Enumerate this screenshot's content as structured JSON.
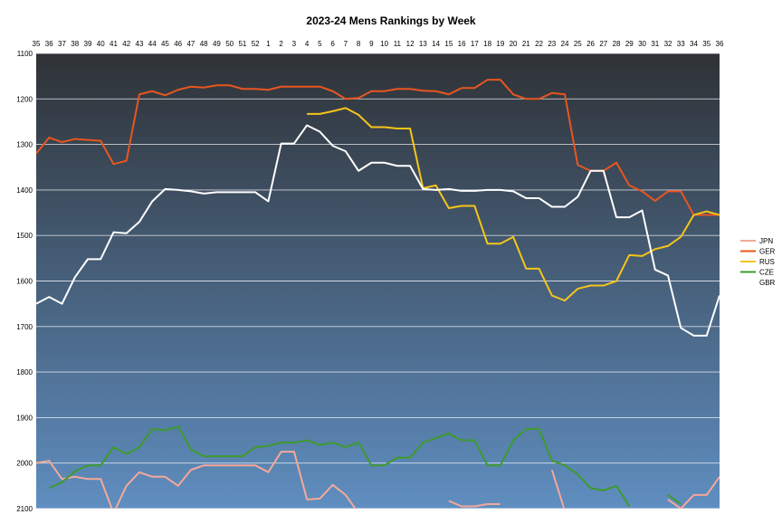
{
  "chart_data": {
    "type": "line",
    "title": "2023-24 Mens Rankings by Week",
    "xlabel": "",
    "ylabel": "",
    "y_reversed": true,
    "ylim": [
      1100,
      2100
    ],
    "yticks": [
      1100,
      1200,
      1300,
      1400,
      1500,
      1600,
      1700,
      1800,
      1900,
      2000,
      2100
    ],
    "x_position": "top",
    "grid": true,
    "legend_position": "right",
    "categories": [
      "35",
      "36",
      "37",
      "38",
      "39",
      "40",
      "41",
      "42",
      "43",
      "44",
      "45",
      "46",
      "47",
      "48",
      "49",
      "50",
      "51",
      "52",
      "1",
      "2",
      "3",
      "4",
      "5",
      "6",
      "7",
      "8",
      "9",
      "10",
      "11",
      "12",
      "13",
      "14",
      "15",
      "16",
      "17",
      "18",
      "19",
      "20",
      "21",
      "22",
      "23",
      "24",
      "25",
      "26",
      "27",
      "28",
      "29",
      "30",
      "31",
      "32",
      "33",
      "34",
      "35",
      "36"
    ],
    "series": [
      {
        "name": "JPN",
        "color": "#f4a89a",
        "values": [
          2000,
          1995,
          2035,
          2030,
          2035,
          2035,
          2110,
          2050,
          2020,
          2030,
          2030,
          2050,
          2015,
          2005,
          2005,
          2005,
          2005,
          2005,
          2020,
          1975,
          1975,
          2080,
          2078,
          2048,
          2070,
          2110,
          null,
          null,
          null,
          null,
          null,
          null,
          2083,
          2095,
          2095,
          2090,
          2090,
          null,
          null,
          null,
          2015,
          2105,
          null,
          null,
          null,
          null,
          null,
          null,
          null,
          2080,
          2100,
          2070,
          2070,
          2030
        ]
      },
      {
        "name": "GER",
        "color": "#e8561f",
        "values": [
          1320,
          1285,
          1295,
          1288,
          1290,
          1292,
          1343,
          1336,
          1190,
          1183,
          1192,
          1180,
          1173,
          1175,
          1170,
          1170,
          1178,
          1178,
          1180,
          1173,
          1173,
          1173,
          1173,
          1183,
          1200,
          1198,
          1183,
          1183,
          1178,
          1178,
          1182,
          1183,
          1190,
          1176,
          1176,
          1158,
          1158,
          1190,
          1200,
          1200,
          1187,
          1190,
          1345,
          1358,
          1358,
          1340,
          1390,
          1403,
          1424,
          1403,
          1403,
          1455,
          1455,
          1455
        ]
      },
      {
        "name": "RUS",
        "color": "#f5c518",
        "values": [
          null,
          null,
          null,
          null,
          null,
          null,
          null,
          null,
          null,
          null,
          null,
          null,
          null,
          null,
          null,
          null,
          null,
          null,
          null,
          null,
          null,
          1233,
          1233,
          1227,
          1220,
          1235,
          1262,
          1262,
          1265,
          1265,
          1396,
          1390,
          1440,
          1435,
          1435,
          1518,
          1518,
          1503,
          1573,
          1573,
          1632,
          1643,
          1617,
          1610,
          1610,
          1600,
          1543,
          1545,
          1530,
          1523,
          1503,
          1455,
          1447,
          1455
        ]
      },
      {
        "name": "CZE",
        "color": "#3e9b2d",
        "values": [
          null,
          2055,
          2042,
          2018,
          2005,
          2005,
          1965,
          1980,
          1965,
          1925,
          1928,
          1920,
          1970,
          1985,
          1985,
          1985,
          1985,
          1965,
          1962,
          1955,
          1955,
          1950,
          1960,
          1955,
          1965,
          1955,
          2005,
          2005,
          1988,
          1988,
          1955,
          1945,
          1935,
          1950,
          1950,
          2005,
          2005,
          1950,
          1925,
          1925,
          1995,
          2005,
          2025,
          2055,
          2060,
          2050,
          2095,
          null,
          null,
          2070,
          2090,
          null,
          null,
          null
        ]
      },
      {
        "name": "GBR",
        "color": "#ffffff",
        "values": [
          1650,
          1635,
          1650,
          1592,
          1552,
          1552,
          1493,
          1495,
          1470,
          1425,
          1398,
          1400,
          1403,
          1408,
          1405,
          1405,
          1405,
          1405,
          1425,
          1298,
          1298,
          1258,
          1272,
          1303,
          1315,
          1358,
          1340,
          1340,
          1347,
          1347,
          1398,
          1400,
          1398,
          1402,
          1402,
          1400,
          1400,
          1403,
          1418,
          1418,
          1437,
          1437,
          1415,
          1358,
          1358,
          1460,
          1460,
          1445,
          1575,
          1588,
          1703,
          1720,
          1720,
          1632
        ]
      }
    ]
  }
}
